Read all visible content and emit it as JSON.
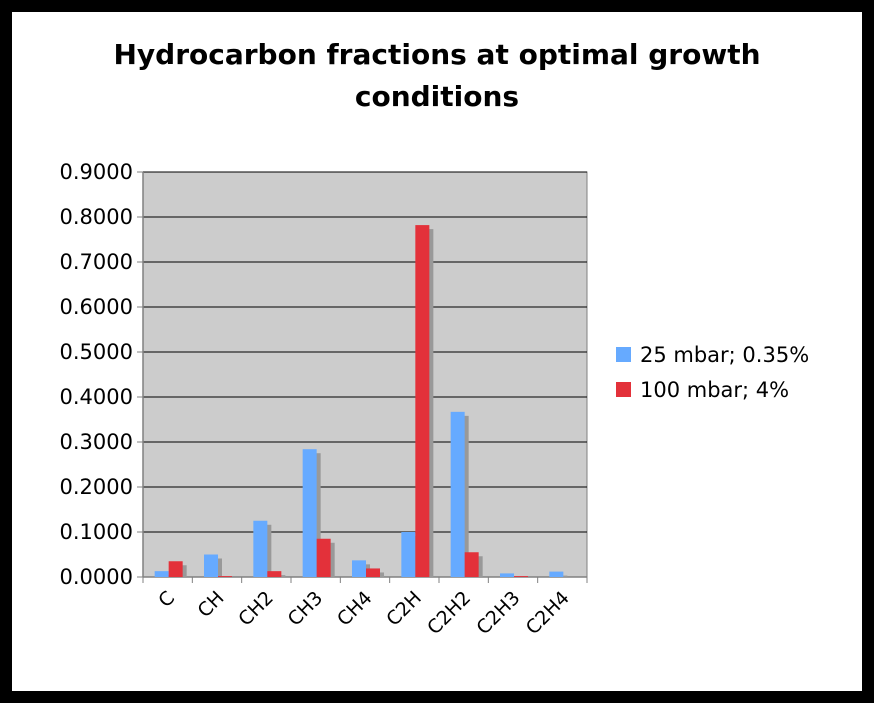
{
  "chart_data": {
    "type": "bar",
    "title_line1": "Hydrocarbon fractions at optimal growth",
    "title_line2": "conditions",
    "categories": [
      "C",
      "CH",
      "CH2",
      "CH3",
      "CH4",
      "C2H",
      "C2H2",
      "C2H3",
      "C2H4"
    ],
    "series": [
      {
        "name": "25 mbar; 0.35%",
        "color": "#66aaff",
        "values": [
          0.013,
          0.05,
          0.125,
          0.284,
          0.037,
          0.1,
          0.367,
          0.008,
          0.012
        ]
      },
      {
        "name": "100 mbar; 4%",
        "color": "#e3313a",
        "values": [
          0.035,
          0.002,
          0.013,
          0.085,
          0.019,
          0.782,
          0.055,
          0.002,
          0.0
        ]
      }
    ],
    "yticks": [
      "0.0000",
      "0.1000",
      "0.2000",
      "0.3000",
      "0.4000",
      "0.5000",
      "0.6000",
      "0.7000",
      "0.8000",
      "0.9000"
    ],
    "ylim": [
      0,
      0.9
    ],
    "grid": true,
    "legend_position": "right",
    "xlabel": "",
    "ylabel": "",
    "plot_background": "#cccccc",
    "shadow_color": "#999999"
  }
}
